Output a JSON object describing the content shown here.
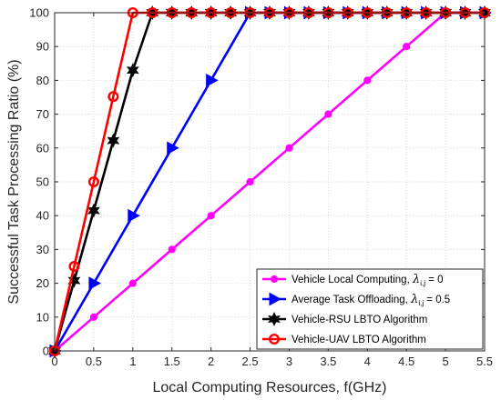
{
  "chart_data": {
    "type": "line",
    "title": "",
    "xlabel": "Local Computing Resources, f(GHz)",
    "ylabel": "Successful Task Processing Ratio (%)",
    "xlim": [
      0,
      5.5
    ],
    "ylim": [
      0,
      100
    ],
    "xticks": [
      "0",
      "0.5",
      "1",
      "1.5",
      "2",
      "2.5",
      "3",
      "3.5",
      "4",
      "4.5",
      "5",
      "5.5"
    ],
    "yticks": [
      "0",
      "10",
      "20",
      "30",
      "40",
      "50",
      "60",
      "70",
      "80",
      "90",
      "100"
    ],
    "grid": true,
    "legend_position": "bottom-right",
    "series": [
      {
        "name": "Vehicle Local Computing, ",
        "legend_symbol": "λ",
        "legend_sub": "i,j",
        "legend_value": " = 0",
        "color": "#ff00ff",
        "marker": "circle",
        "x": [
          0,
          0.5,
          1,
          1.5,
          2,
          2.5,
          3,
          3.5,
          4,
          4.5,
          5,
          5.25,
          5.5
        ],
        "y": [
          0,
          10,
          20,
          30,
          40,
          50,
          60,
          70,
          80,
          90,
          100,
          100,
          100
        ]
      },
      {
        "name": "Average Task Offloading, ",
        "legend_symbol": "λ",
        "legend_sub": "i,j",
        "legend_value": " = 0.5",
        "color": "#0000ff",
        "marker": "triangle-right",
        "x": [
          0,
          0.5,
          1,
          1.5,
          2,
          2.5,
          2.75,
          3,
          3.25,
          3.5,
          3.75,
          4,
          4.25,
          4.5,
          4.75,
          5,
          5.25,
          5.5
        ],
        "y": [
          0,
          20,
          40,
          60,
          80,
          100,
          100,
          100,
          100,
          100,
          100,
          100,
          100,
          100,
          100,
          100,
          100,
          100
        ]
      },
      {
        "name": "Vehicle-RSU LBTO Algorithm",
        "color": "#000000",
        "marker": "hexagram",
        "x": [
          0,
          0.25,
          0.5,
          0.75,
          1,
          1.25,
          1.5,
          1.75,
          2,
          2.25,
          2.5,
          2.75,
          3,
          3.25,
          3.5,
          3.75,
          4,
          4.25,
          4.5,
          4.75,
          5,
          5.25,
          5.5
        ],
        "y": [
          0,
          20.8,
          41.5,
          62.2,
          83,
          100,
          100,
          100,
          100,
          100,
          100,
          100,
          100,
          100,
          100,
          100,
          100,
          100,
          100,
          100,
          100,
          100,
          100
        ]
      },
      {
        "name": "Vehicle-UAV LBTO Algorithm",
        "color": "#ff0000",
        "marker": "open-circle",
        "x": [
          0,
          0.25,
          0.5,
          0.75,
          1,
          1.25,
          1.5,
          1.75,
          2,
          2.25,
          2.5,
          2.75,
          3,
          3.25,
          3.5,
          3.75,
          4,
          4.25,
          4.5,
          4.75,
          5,
          5.25,
          5.5
        ],
        "y": [
          0,
          25,
          50,
          75.2,
          100,
          100,
          100,
          100,
          100,
          100,
          100,
          100,
          100,
          100,
          100,
          100,
          100,
          100,
          100,
          100,
          100,
          100,
          100
        ]
      }
    ]
  }
}
